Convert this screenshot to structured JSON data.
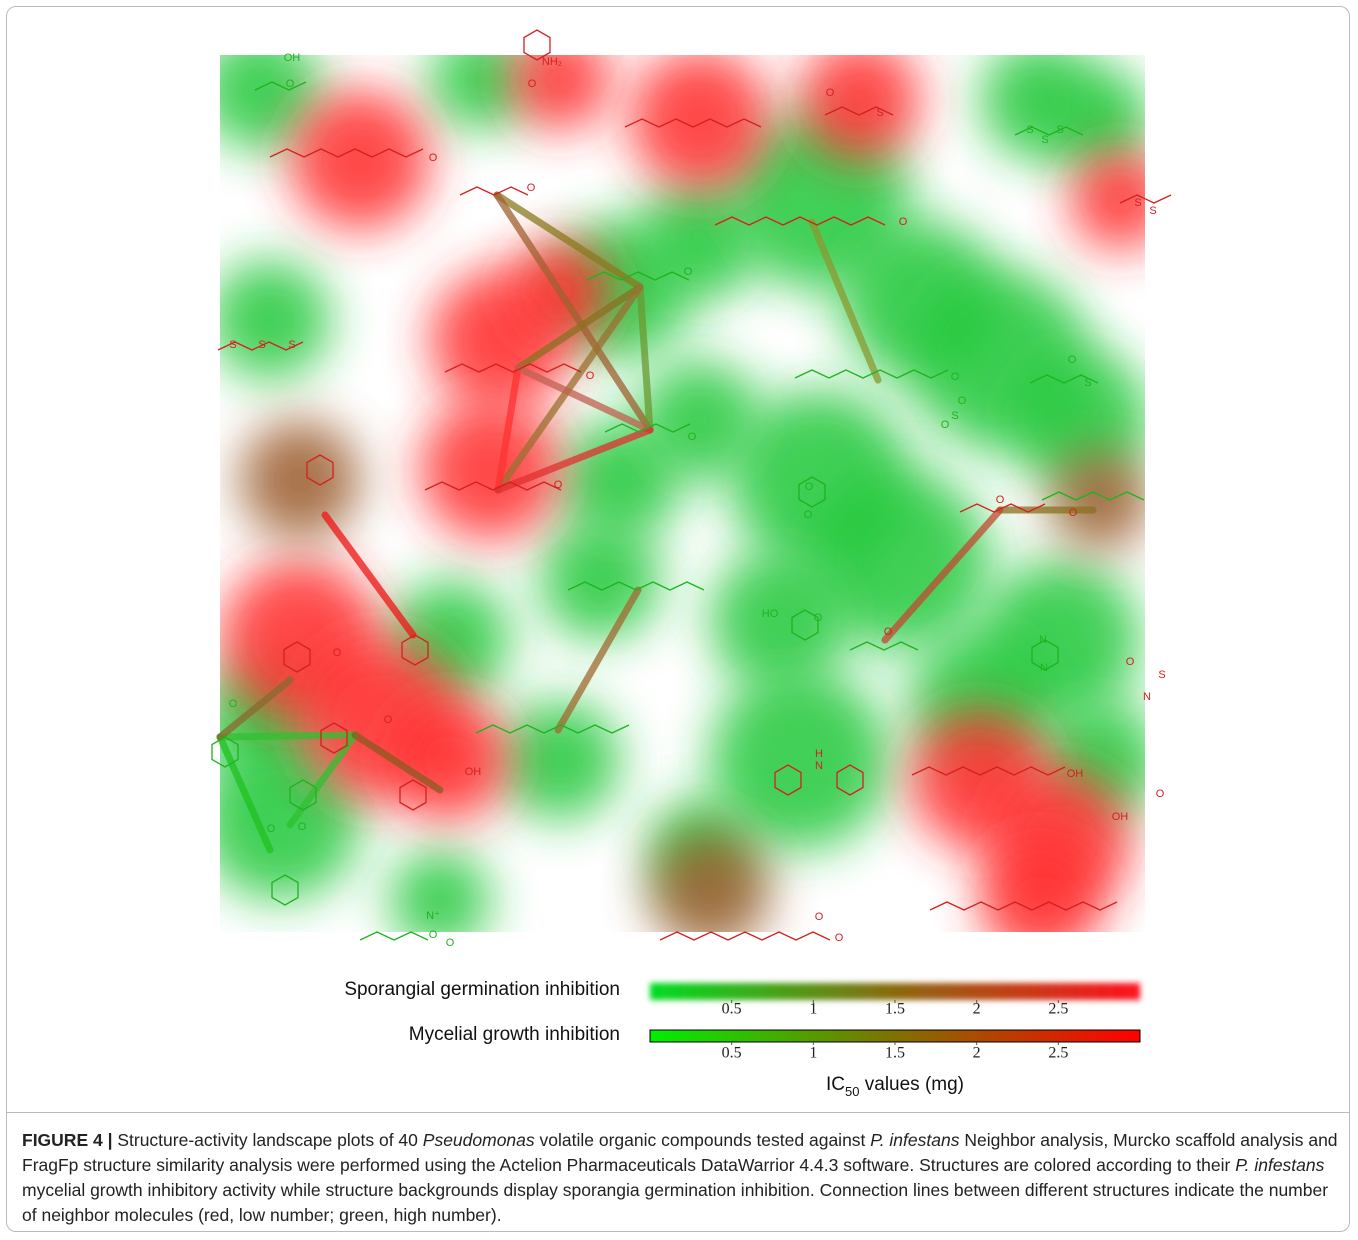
{
  "figure": {
    "colorbars": [
      {
        "label": "Sporangial germination inhibition",
        "lim": [
          0,
          3
        ],
        "ticks": [
          0.5,
          1,
          1.5,
          2,
          2.5
        ],
        "colors": [
          "#00dd22",
          "#8a6a10",
          "#ff1020"
        ],
        "soft": true
      },
      {
        "label": "Mycelial growth inhibition",
        "lim": [
          0,
          3
        ],
        "ticks": [
          0.5,
          1,
          1.5,
          2,
          2.5
        ],
        "colors": [
          "#00ee00",
          "#807000",
          "#ff0000"
        ],
        "soft": false
      }
    ],
    "axis_label": {
      "main": "IC",
      "sub": "50",
      "rest": " values (mg)"
    },
    "atom_labels": [
      "OH",
      "O",
      "NH₂",
      "O",
      "O",
      "S",
      "S",
      "S",
      "S",
      "S",
      "S",
      "O",
      "O",
      "O",
      "O",
      "S",
      "S",
      "S",
      "O",
      "O",
      "O",
      "S",
      "S",
      "O",
      "O",
      "O",
      "O",
      "O",
      "O",
      "O",
      "O",
      "HO",
      "O",
      "O",
      "N",
      "N",
      "S",
      "N",
      "O",
      "O",
      "O",
      "O",
      "OH",
      "H",
      "N",
      "OH",
      "O",
      "OH",
      "O",
      "O",
      "N⁺",
      "O",
      "O",
      "O",
      "O"
    ]
  },
  "caption": {
    "label": "FIGURE 4 |",
    "segments": [
      " Structure-activity landscape plots of 40 ",
      "Pseudomonas",
      " volatile organic compounds tested against ",
      "P. infestans",
      " Neighbor analysis, Murcko scaffold analysis and FragFp structure similarity analysis were performed using the Actelion Pharmaceuticals DataWarrior 4.4.3 software. Structures are colored according to their ",
      "P. infestans",
      " mycelial growth inhibitory activity while structure backgrounds display sporangia germination inhibition. Connection lines between different structures indicate the number of neighbor molecules (red, low number; green, high number)."
    ]
  }
}
